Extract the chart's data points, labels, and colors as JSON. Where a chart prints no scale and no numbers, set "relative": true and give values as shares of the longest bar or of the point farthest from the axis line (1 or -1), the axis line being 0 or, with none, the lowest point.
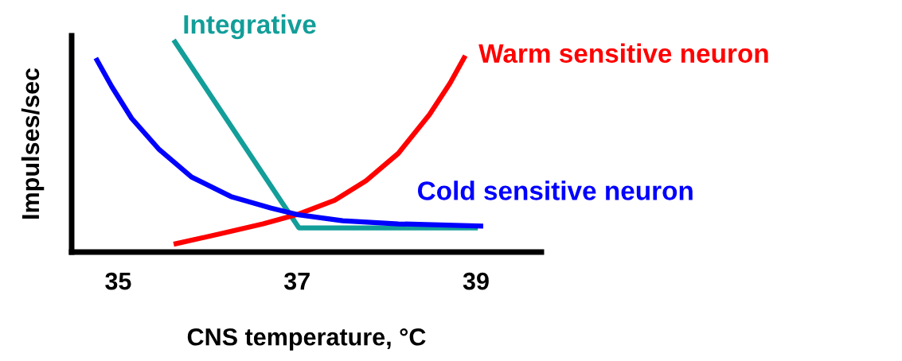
{
  "chart_data": {
    "type": "line",
    "xlabel": "CNS temperature, °C",
    "ylabel": "Impulses/sec",
    "relative": true,
    "xlim": [
      34.48,
      39.73
    ],
    "xticks": [
      35,
      37,
      39
    ],
    "grid": false,
    "legend": false,
    "marker": "none",
    "line_style": "solid",
    "series": [
      {
        "name": "Integrative",
        "color": "#129e99",
        "x": [
          35.62,
          37.02,
          39.02
        ],
        "values": [
          1.0,
          0.114,
          0.114
        ]
      },
      {
        "name": "Warm sensitive neuron",
        "color": "#ff0000",
        "x": [
          35.62,
          36.17,
          36.62,
          37.0,
          37.42,
          37.77,
          38.13,
          38.48,
          38.71,
          38.88
        ],
        "values": [
          0.037,
          0.089,
          0.133,
          0.177,
          0.244,
          0.336,
          0.465,
          0.649,
          0.797,
          0.926
        ]
      },
      {
        "name": "Cold sensitive neuron",
        "color": "#0000ff",
        "x": [
          34.75,
          34.93,
          35.15,
          35.46,
          35.82,
          36.26,
          36.71,
          37.0,
          37.51,
          38.13,
          39.08
        ],
        "values": [
          0.915,
          0.779,
          0.631,
          0.483,
          0.354,
          0.262,
          0.207,
          0.177,
          0.148,
          0.133,
          0.122
        ]
      }
    ]
  }
}
